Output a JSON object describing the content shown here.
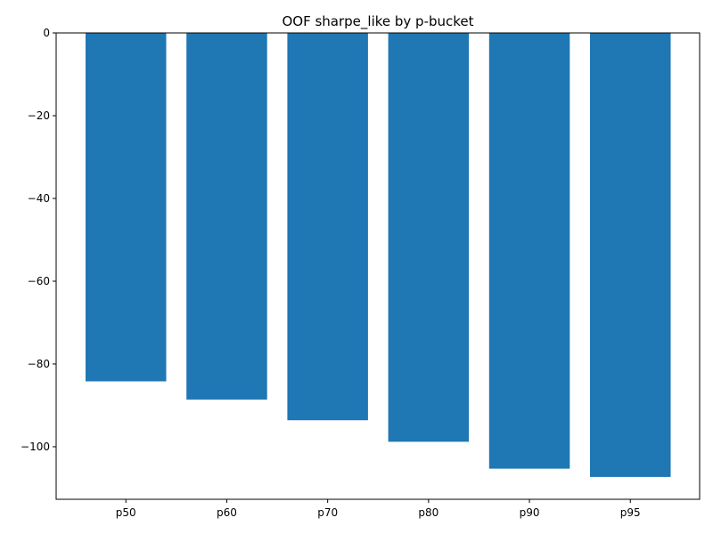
{
  "chart_data": {
    "type": "bar",
    "title": "OOF sharpe_like by p-bucket",
    "xlabel": "",
    "ylabel": "",
    "categories": [
      "p50",
      "p60",
      "p70",
      "p80",
      "p90",
      "p95"
    ],
    "values": [
      -84.2,
      -88.6,
      -93.6,
      -98.8,
      -105.3,
      -107.3
    ],
    "ylim": [
      -112.7,
      0
    ],
    "yticks": [
      0,
      -20,
      -40,
      -60,
      -80,
      -100
    ],
    "ytick_labels": [
      "0",
      "−20",
      "−40",
      "−60",
      "−80",
      "−100"
    ],
    "bar_color": "#1f77b4",
    "grid": false,
    "legend": "none"
  }
}
